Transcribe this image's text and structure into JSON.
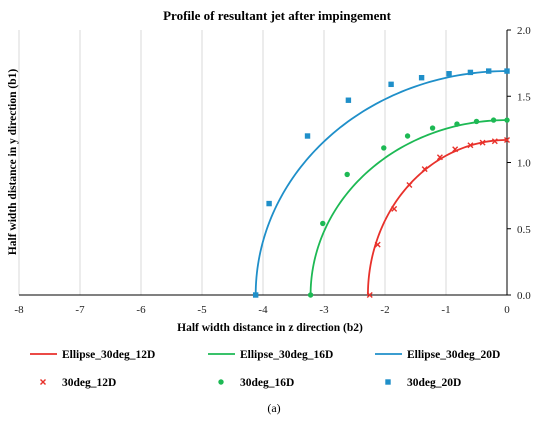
{
  "chart_data": {
    "type": "scatter",
    "title": "Profile of resultant jet after impingement",
    "xlabel": "Half width distance in z direction (b2)",
    "ylabel": "Half width distance in y direction (b1)",
    "xlim": [
      -8,
      0
    ],
    "ylim": [
      0,
      2
    ],
    "x_ticks": [
      "-8",
      "-7",
      "-6",
      "-5",
      "-4",
      "-3",
      "-2",
      "-1",
      "0"
    ],
    "y_ticks": [
      "0.0",
      "0.5",
      "1.0",
      "1.5",
      "2.0"
    ],
    "grid": "vertical",
    "y_axis_position": "right",
    "legend_position": "bottom",
    "caption": "(a)",
    "lines": [
      {
        "name": "Ellipse_30deg_12D",
        "color": "#e8312b",
        "a": 2.28,
        "b": 1.17
      },
      {
        "name": "Ellipse_30deg_16D",
        "color": "#1db954",
        "a": 3.22,
        "b": 1.32
      },
      {
        "name": "Ellipse_30deg_20D",
        "color": "#1f8fc9",
        "a": 4.12,
        "b": 1.69
      }
    ],
    "series": [
      {
        "name": "30deg_12D",
        "color": "#e8312b",
        "marker": "x",
        "points": [
          [
            -2.25,
            0.0
          ],
          [
            -2.12,
            0.38
          ],
          [
            -1.85,
            0.65
          ],
          [
            -1.6,
            0.83
          ],
          [
            -1.35,
            0.95
          ],
          [
            -1.1,
            1.04
          ],
          [
            -0.85,
            1.1
          ],
          [
            -0.6,
            1.13
          ],
          [
            -0.4,
            1.15
          ],
          [
            -0.2,
            1.16
          ],
          [
            0.0,
            1.17
          ]
        ]
      },
      {
        "name": "30deg_16D",
        "color": "#1db954",
        "marker": "circle",
        "points": [
          [
            -3.22,
            0.0
          ],
          [
            -3.02,
            0.54
          ],
          [
            -2.62,
            0.91
          ],
          [
            -2.02,
            1.11
          ],
          [
            -1.63,
            1.2
          ],
          [
            -1.22,
            1.26
          ],
          [
            -0.82,
            1.29
          ],
          [
            -0.5,
            1.31
          ],
          [
            -0.22,
            1.32
          ],
          [
            0.0,
            1.32
          ]
        ]
      },
      {
        "name": "30deg_20D",
        "color": "#1f8fc9",
        "marker": "square",
        "points": [
          [
            -4.12,
            0.0
          ],
          [
            -3.9,
            0.69
          ],
          [
            -3.27,
            1.2
          ],
          [
            -2.6,
            1.47
          ],
          [
            -1.9,
            1.59
          ],
          [
            -1.4,
            1.64
          ],
          [
            -0.95,
            1.67
          ],
          [
            -0.6,
            1.68
          ],
          [
            -0.3,
            1.69
          ],
          [
            0.0,
            1.69
          ]
        ]
      }
    ]
  }
}
